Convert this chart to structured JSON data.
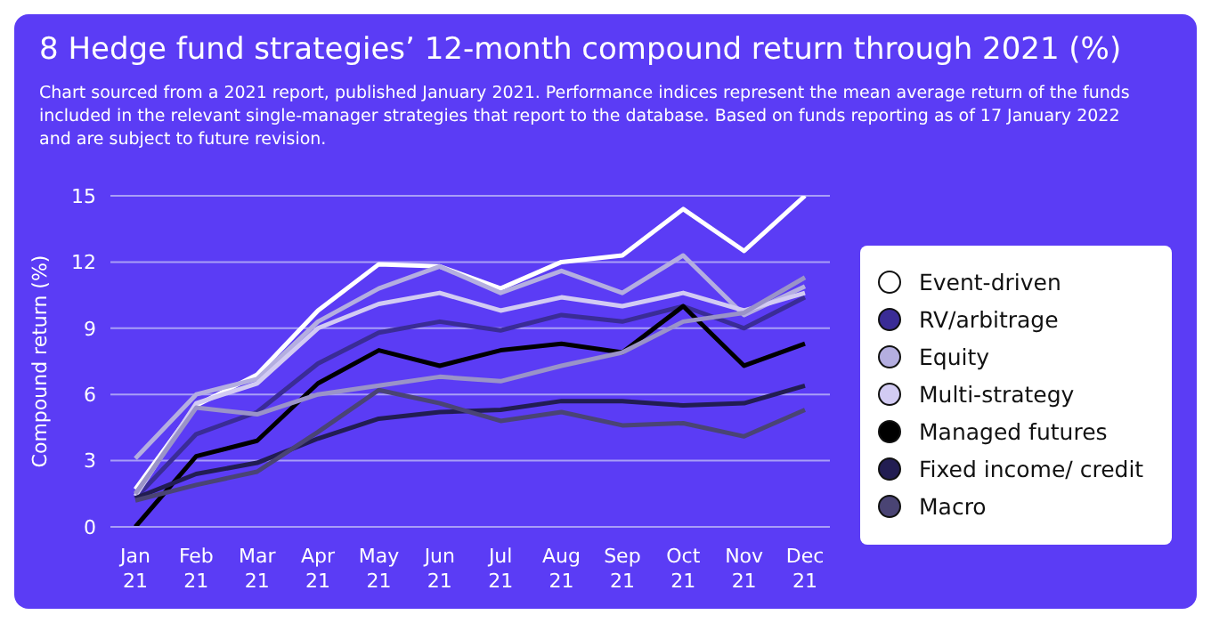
{
  "chart_data": {
    "type": "line",
    "title": "8 Hedge fund strategies’ 12-month compound return through 2021 (%)",
    "subtitle": "Chart sourced from a 2021 report, published January 2021. Performance indices represent the mean average return of the funds included in the relevant single-manager strategies that report to the database. Based on funds reporting as of 17 January 2022 and are subject to future revision.",
    "ylabel": "Compound return (%)",
    "categories": [
      "Jan 21",
      "Feb 21",
      "Mar 21",
      "Apr 21",
      "May 21",
      "Jun 21",
      "Jul 21",
      "Aug 21",
      "Sep 21",
      "Oct 21",
      "Nov 21",
      "Dec 21"
    ],
    "series": [
      {
        "name": "Event-driven",
        "color": "#ffffff",
        "values": [
          1.7,
          5.5,
          6.9,
          9.8,
          11.9,
          11.8,
          10.8,
          12.0,
          12.3,
          14.4,
          12.5,
          15.0
        ]
      },
      {
        "name": "RV/arbitrage",
        "color": "#3a2c96",
        "values": [
          1.3,
          4.2,
          5.2,
          7.4,
          8.8,
          9.3,
          8.9,
          9.6,
          9.3,
          10.0,
          9.0,
          10.4
        ]
      },
      {
        "name": "Equity",
        "color": "#b4aee0",
        "values": [
          3.1,
          6.0,
          6.7,
          9.3,
          10.8,
          11.8,
          10.6,
          11.6,
          10.6,
          12.3,
          9.6,
          10.9
        ]
      },
      {
        "name": "Multi-strategy",
        "color": "#d2cbf3",
        "values": [
          1.4,
          5.6,
          6.5,
          9.0,
          10.1,
          10.6,
          9.8,
          10.4,
          10.0,
          10.6,
          9.8,
          10.6
        ]
      },
      {
        "name": "Managed futures",
        "color": "#000000",
        "values": [
          0,
          3.2,
          3.9,
          6.5,
          8.0,
          7.3,
          8.0,
          8.3,
          7.9,
          10.0,
          7.3,
          8.3
        ]
      },
      {
        "name": "Fixed income/ credit",
        "color": "#221d52",
        "values": [
          1.3,
          2.4,
          2.9,
          4.0,
          4.9,
          5.2,
          5.3,
          5.7,
          5.7,
          5.5,
          5.6,
          6.4
        ]
      },
      {
        "name": "Macro",
        "color": "#4a4474",
        "values": [
          1.2,
          1.9,
          2.5,
          4.3,
          6.2,
          5.6,
          4.8,
          5.2,
          4.6,
          4.7,
          4.1,
          5.3
        ]
      },
      {
        "color": "#9a93c8",
        "values": [
          1.5,
          5.4,
          5.1,
          6.0,
          6.4,
          6.8,
          6.6,
          7.3,
          7.9,
          9.3,
          9.7,
          11.3
        ]
      }
    ],
    "ylim": [
      0,
      15
    ],
    "yticks": [
      0,
      3,
      6,
      9,
      12,
      15
    ],
    "grid": "y",
    "legend": "right",
    "marker": "none",
    "line_style": "solid"
  }
}
